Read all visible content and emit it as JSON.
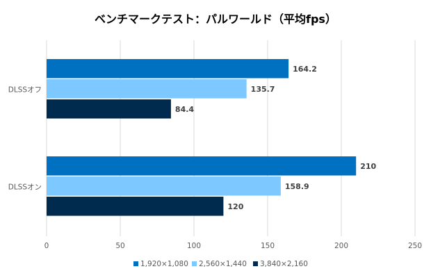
{
  "chart_data": {
    "type": "bar",
    "orientation": "horizontal",
    "title": "ベンチマークテスト：パルワールド（平均fps）",
    "categories": [
      "DLSSオフ",
      "DLSSオン"
    ],
    "series": [
      {
        "name": "1,920×1,080",
        "color": "#0070C0",
        "values": [
          164.2,
          210
        ]
      },
      {
        "name": "2,560×1,440",
        "color": "#7DC8FF",
        "values": [
          135.7,
          158.9
        ]
      },
      {
        "name": "3,840×2,160",
        "color": "#002B4F",
        "values": [
          84.4,
          120
        ]
      }
    ],
    "data_labels": [
      [
        "164.2",
        "210"
      ],
      [
        "135.7",
        "158.9"
      ],
      [
        "84.4",
        "120"
      ]
    ],
    "xlim": [
      0,
      250
    ],
    "xticks": [
      "0",
      "50",
      "100",
      "150",
      "200",
      "250"
    ],
    "grid": true,
    "legend": "bottom",
    "xlabel": "",
    "ylabel": ""
  }
}
